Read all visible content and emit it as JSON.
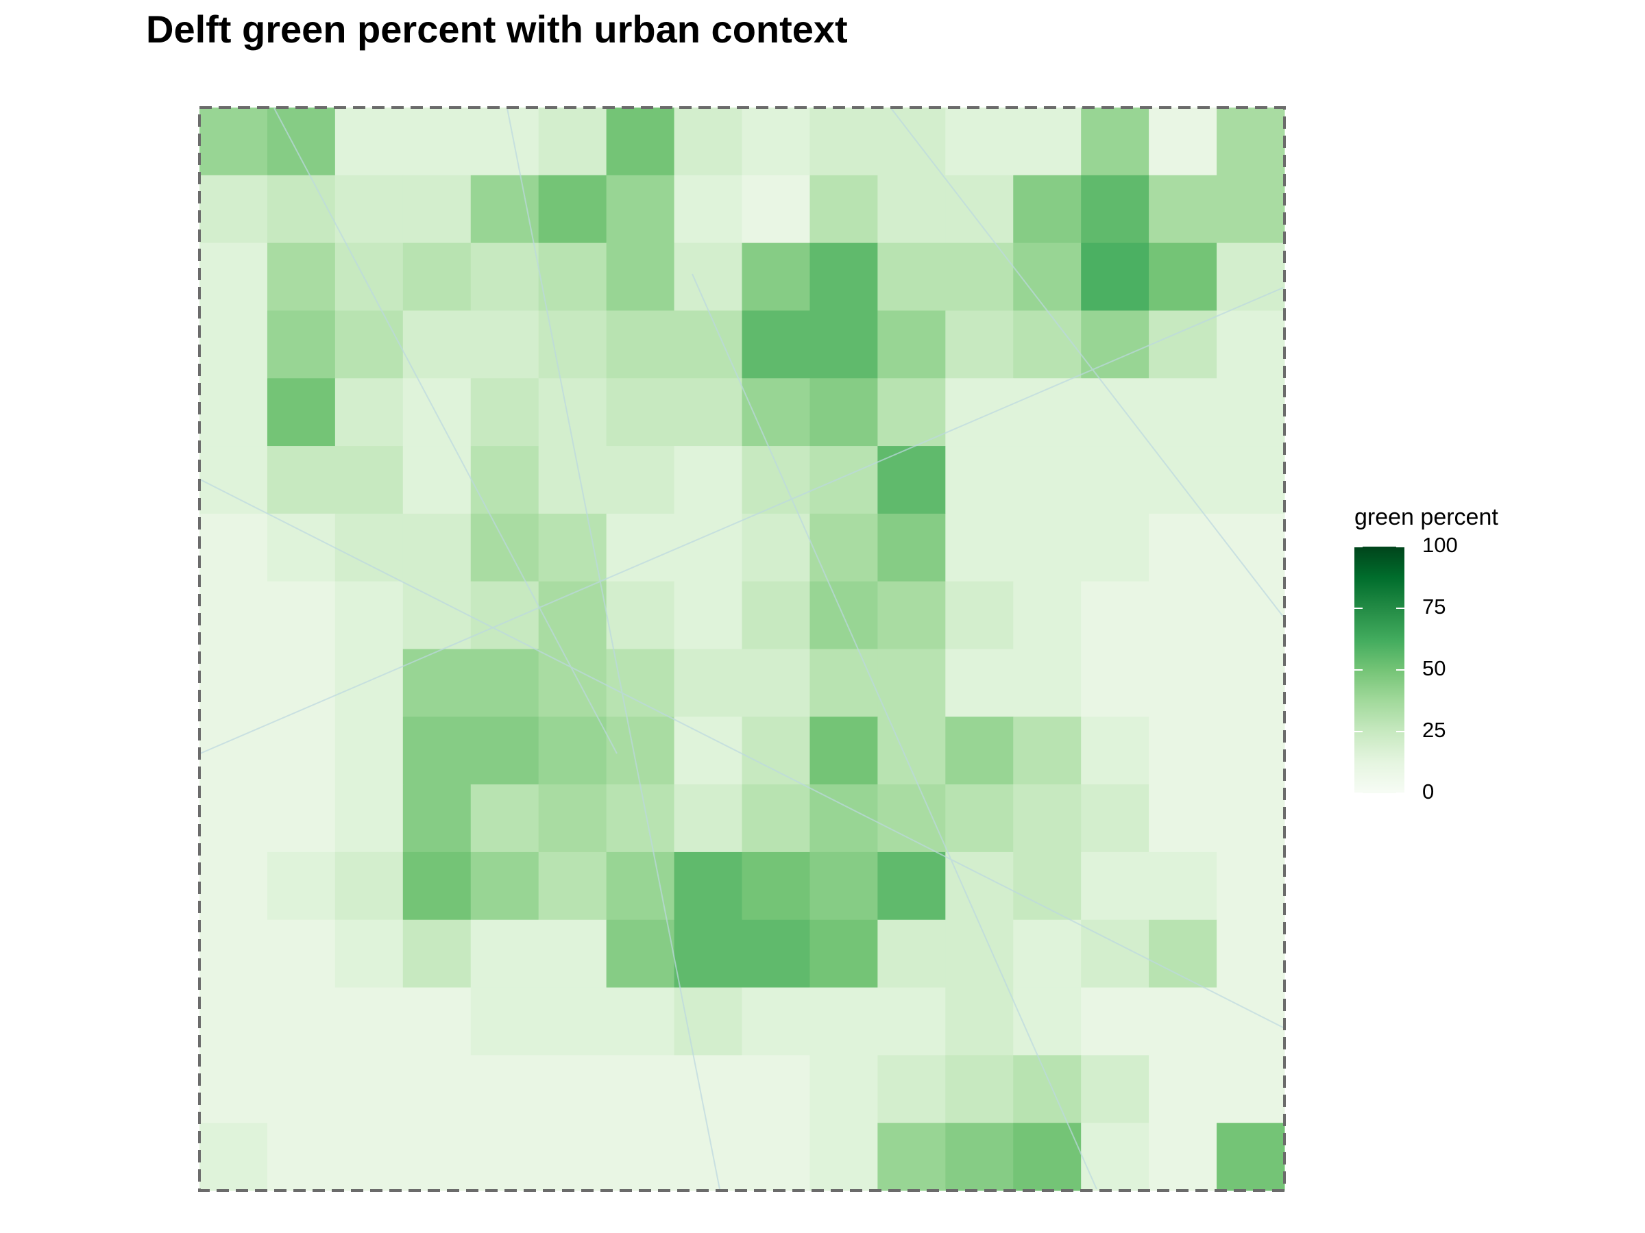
{
  "chart_data": {
    "type": "heatmap",
    "title": "Delft green percent with urban context",
    "colorbar": {
      "title": "green percent",
      "lim": [
        0,
        100
      ],
      "ticks": [
        0,
        25,
        50,
        75,
        100
      ],
      "colors": [
        "#f7fcf5",
        "#e5f5e0",
        "#c7e9c0",
        "#a1d99b",
        "#74c476",
        "#41ab5d",
        "#238b45",
        "#006d2c",
        "#00441b"
      ]
    },
    "values": [
      [
        40,
        45,
        15,
        15,
        15,
        20,
        50,
        20,
        15,
        20,
        20,
        15,
        15,
        40,
        10,
        35
      ],
      [
        20,
        25,
        20,
        20,
        40,
        50,
        40,
        15,
        10,
        30,
        20,
        20,
        45,
        55,
        35,
        35
      ],
      [
        15,
        35,
        25,
        30,
        25,
        30,
        40,
        20,
        45,
        55,
        30,
        30,
        40,
        60,
        50,
        20
      ],
      [
        15,
        40,
        30,
        20,
        20,
        25,
        30,
        30,
        55,
        55,
        40,
        25,
        30,
        40,
        25,
        15
      ],
      [
        15,
        50,
        20,
        15,
        25,
        20,
        25,
        25,
        40,
        45,
        30,
        15,
        15,
        15,
        15,
        15
      ],
      [
        15,
        25,
        25,
        15,
        30,
        20,
        20,
        15,
        25,
        30,
        55,
        15,
        15,
        15,
        15,
        15
      ],
      [
        10,
        15,
        20,
        20,
        35,
        30,
        15,
        15,
        20,
        35,
        45,
        15,
        15,
        15,
        10,
        10
      ],
      [
        10,
        10,
        15,
        20,
        25,
        35,
        20,
        15,
        25,
        40,
        35,
        20,
        15,
        10,
        10,
        10
      ],
      [
        10,
        10,
        15,
        40,
        40,
        35,
        30,
        20,
        20,
        30,
        30,
        15,
        15,
        10,
        10,
        10
      ],
      [
        10,
        10,
        15,
        45,
        45,
        40,
        35,
        15,
        25,
        50,
        30,
        40,
        30,
        15,
        10,
        10
      ],
      [
        10,
        10,
        15,
        45,
        30,
        35,
        30,
        20,
        30,
        40,
        35,
        30,
        25,
        20,
        10,
        10
      ],
      [
        10,
        15,
        20,
        50,
        40,
        30,
        40,
        55,
        50,
        45,
        55,
        20,
        25,
        15,
        15,
        10
      ],
      [
        10,
        10,
        15,
        25,
        15,
        15,
        45,
        55,
        55,
        50,
        20,
        20,
        15,
        20,
        30,
        10
      ],
      [
        10,
        10,
        10,
        10,
        15,
        15,
        15,
        20,
        15,
        15,
        15,
        20,
        15,
        10,
        10,
        10
      ],
      [
        10,
        10,
        10,
        10,
        10,
        10,
        10,
        10,
        10,
        15,
        20,
        25,
        30,
        20,
        10,
        10
      ],
      [
        15,
        10,
        10,
        10,
        10,
        10,
        10,
        10,
        10,
        15,
        40,
        45,
        50,
        15,
        10,
        50
      ]
    ]
  }
}
